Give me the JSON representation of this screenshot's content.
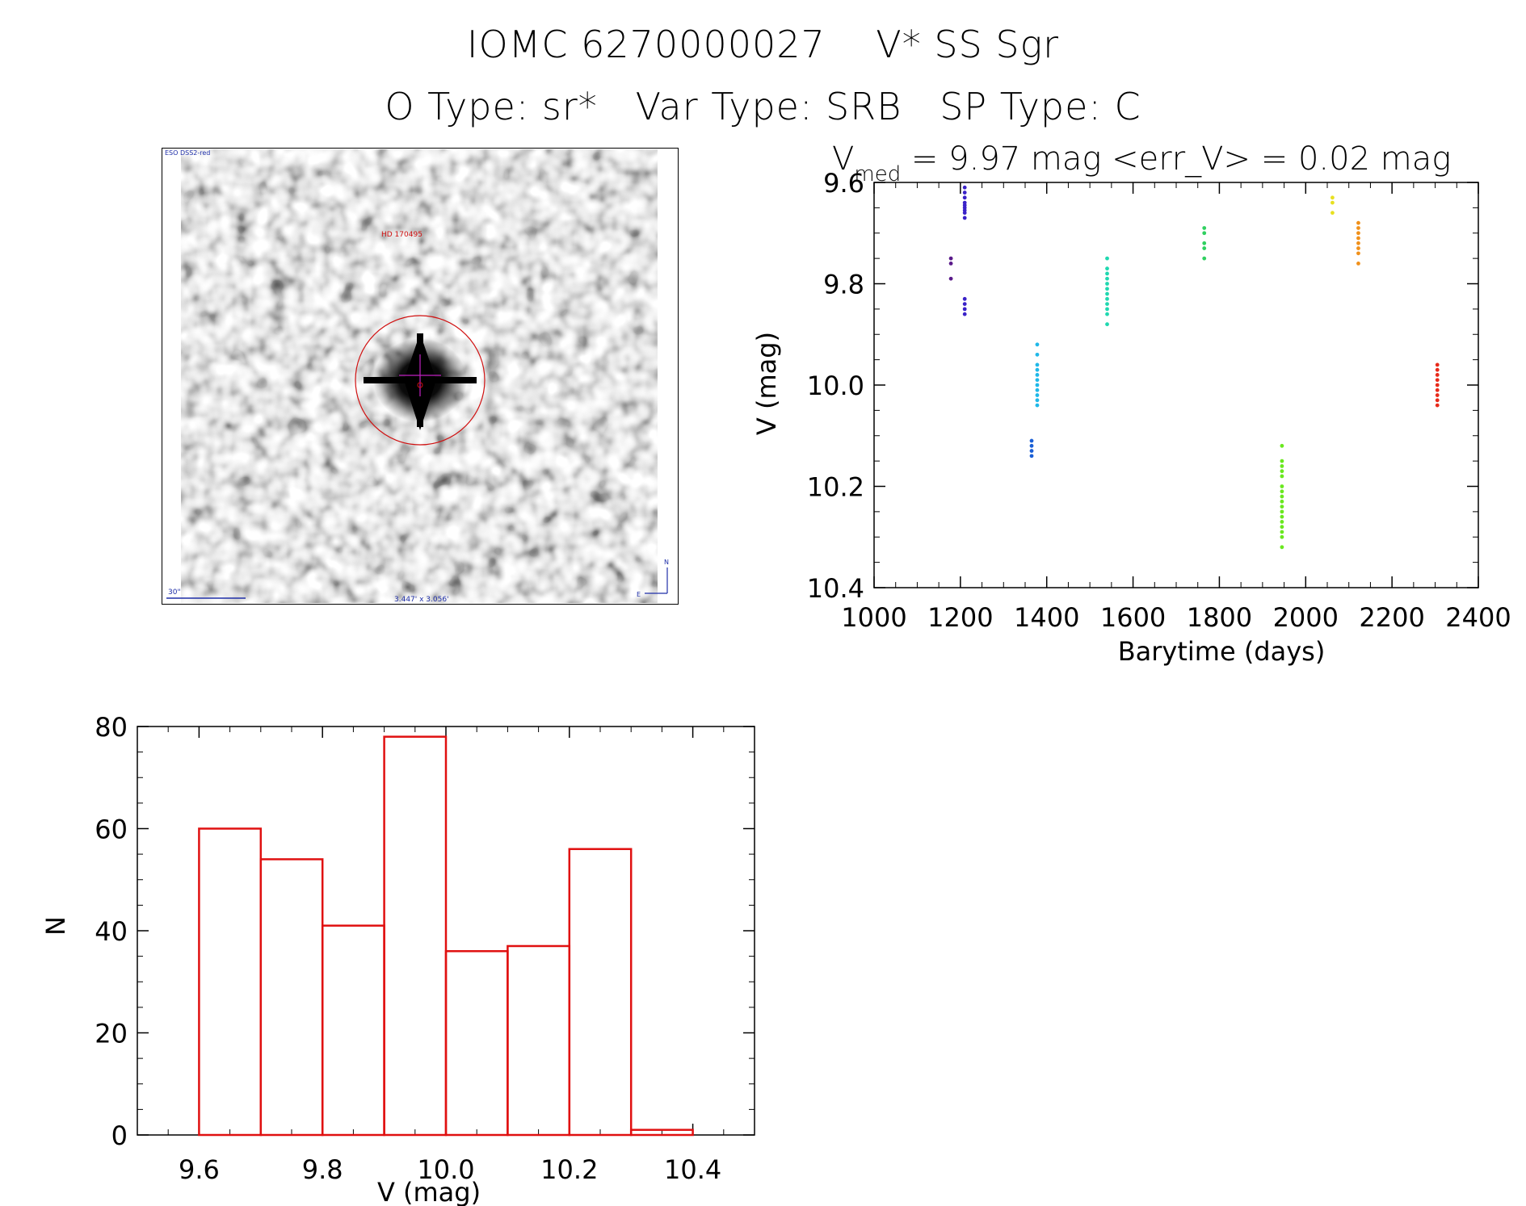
{
  "header": {
    "title_line1": "IOMC 6270000027    V* SS Sgr",
    "title_line2": "O Type: sr*   Var Type: SRB   SP Type: C"
  },
  "finder_chart": {
    "survey_label": "ESO DSS2-red",
    "target_label": "HD 170495",
    "scale_label": "30\"",
    "size_label": "3.447' x 3.056'",
    "north_label": "N",
    "east_label": "E",
    "colors": {
      "labels": "#1f2fa8",
      "marker": "#d01010",
      "crosshair": "#c020c0"
    }
  },
  "chart_data": [
    {
      "type": "scatter",
      "title_main": "V",
      "title_sub": "med",
      "title_rest": " = 9.97 mag <err_V> = 0.02 mag",
      "xlabel": "Barytime (days)",
      "ylabel": "V (mag)",
      "xlim": [
        1000,
        2400
      ],
      "ylim": [
        10.4,
        9.6
      ],
      "y_inverted": true,
      "xticks": [
        "1000",
        "1200",
        "1400",
        "1600",
        "1800",
        "2000",
        "2200",
        "2400"
      ],
      "yticks": [
        "9.6",
        "9.8",
        "10.0",
        "10.2",
        "10.4"
      ],
      "clusters": [
        {
          "x": 1178,
          "y_values": [
            9.75,
            9.76,
            9.79
          ],
          "color": "#5a1a8a"
        },
        {
          "x": 1210,
          "y_values": [
            9.63,
            9.64,
            9.645,
            9.65,
            9.655,
            9.66,
            9.67,
            9.62,
            9.61,
            9.85,
            9.86,
            9.83,
            9.84
          ],
          "color": "#3a22c8"
        },
        {
          "x": 1365,
          "y_values": [
            10.11,
            10.12,
            10.13,
            10.14
          ],
          "color": "#1a5fd6"
        },
        {
          "x": 1378,
          "y_values": [
            9.92,
            9.94,
            9.96,
            9.97,
            9.98,
            9.99,
            10.0,
            10.01,
            10.02,
            10.03,
            10.04
          ],
          "color": "#20b8e8"
        },
        {
          "x": 1540,
          "y_values": [
            9.75,
            9.77,
            9.78,
            9.79,
            9.8,
            9.81,
            9.82,
            9.83,
            9.84,
            9.85,
            9.86,
            9.88
          ],
          "color": "#20d8b0"
        },
        {
          "x": 1765,
          "y_values": [
            9.69,
            9.7,
            9.72,
            9.73,
            9.75
          ],
          "color": "#30d060"
        },
        {
          "x": 1945,
          "y_values": [
            10.12,
            10.15,
            10.16,
            10.17,
            10.18,
            10.2,
            10.21,
            10.22,
            10.23,
            10.24,
            10.25,
            10.26,
            10.27,
            10.28,
            10.29,
            10.3,
            10.32
          ],
          "color": "#6ae820"
        },
        {
          "x": 2062,
          "y_values": [
            9.63,
            9.64,
            9.66
          ],
          "color": "#e8e020"
        },
        {
          "x": 2122,
          "y_values": [
            9.68,
            9.69,
            9.7,
            9.71,
            9.72,
            9.73,
            9.74,
            9.76
          ],
          "color": "#f0901a"
        },
        {
          "x": 2305,
          "y_values": [
            9.96,
            9.97,
            9.98,
            9.99,
            10.0,
            10.01,
            10.02,
            10.03,
            10.04
          ],
          "color": "#e82a1a"
        }
      ]
    },
    {
      "type": "bar",
      "subtype": "histogram",
      "xlabel": "V (mag)",
      "ylabel": "N",
      "xlim": [
        9.5,
        10.5
      ],
      "ylim": [
        0,
        80
      ],
      "xticks": [
        "9.6",
        "9.8",
        "10.0",
        "10.2",
        "10.4"
      ],
      "yticks": [
        "0",
        "20",
        "40",
        "60",
        "80"
      ],
      "bin_edges": [
        9.6,
        9.7,
        9.8,
        9.9,
        10.0,
        10.1,
        10.2,
        10.3,
        10.4
      ],
      "values": [
        60,
        54,
        41,
        78,
        36,
        37,
        56,
        1
      ],
      "color": "#e01010"
    }
  ]
}
